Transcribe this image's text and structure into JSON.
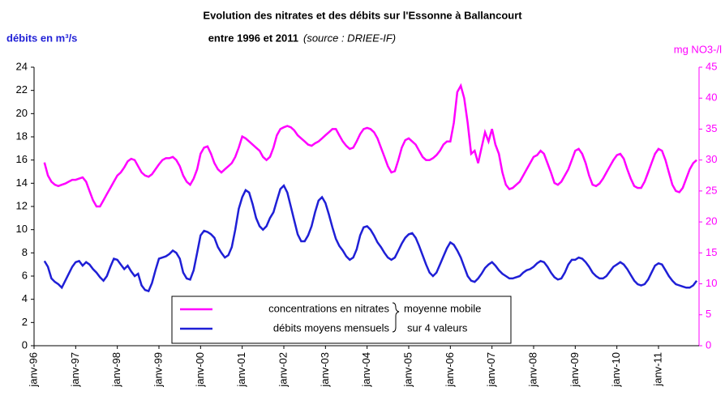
{
  "chart_data": {
    "type": "line",
    "title": "Evolution des nitrates et des débits sur l'Essonne à Ballancourt",
    "subtitle": "entre 1996 et 2011",
    "source": "(source : DRIEE-IF)",
    "y_label": "débits en m³/s",
    "y2_label": "mg NO3-/l",
    "legend_note": [
      "moyenne mobile",
      "sur 4 valeurs"
    ],
    "categories": [
      "janv-96",
      null,
      null,
      null,
      null,
      null,
      null,
      null,
      null,
      null,
      null,
      null,
      "janv-97",
      null,
      null,
      null,
      null,
      null,
      null,
      null,
      null,
      null,
      null,
      null,
      "janv-98",
      null,
      null,
      null,
      null,
      null,
      null,
      null,
      null,
      null,
      null,
      null,
      "janv-99",
      null,
      null,
      null,
      null,
      null,
      null,
      null,
      null,
      null,
      null,
      null,
      "janv-00",
      null,
      null,
      null,
      null,
      null,
      null,
      null,
      null,
      null,
      null,
      null,
      "janv-01",
      null,
      null,
      null,
      null,
      null,
      null,
      null,
      null,
      null,
      null,
      null,
      "janv-02",
      null,
      null,
      null,
      null,
      null,
      null,
      null,
      null,
      null,
      null,
      null,
      "janv-03",
      null,
      null,
      null,
      null,
      null,
      null,
      null,
      null,
      null,
      null,
      null,
      "janv-04",
      null,
      null,
      null,
      null,
      null,
      null,
      null,
      null,
      null,
      null,
      null,
      "janv-05",
      null,
      null,
      null,
      null,
      null,
      null,
      null,
      null,
      null,
      null,
      null,
      "janv-06",
      null,
      null,
      null,
      null,
      null,
      null,
      null,
      null,
      null,
      null,
      null,
      "janv-07",
      null,
      null,
      null,
      null,
      null,
      null,
      null,
      null,
      null,
      null,
      null,
      "janv-08",
      null,
      null,
      null,
      null,
      null,
      null,
      null,
      null,
      null,
      null,
      null,
      "janv-09",
      null,
      null,
      null,
      null,
      null,
      null,
      null,
      null,
      null,
      null,
      null,
      "janv-10",
      null,
      null,
      null,
      null,
      null,
      null,
      null,
      null,
      null,
      null,
      null,
      "janv-11",
      null,
      null,
      null,
      null,
      null,
      null,
      null,
      null,
      null,
      null,
      null
    ],
    "series": [
      {
        "name": "concentrations en nitrates",
        "color": "#ff00ff",
        "axis": "y2",
        "values": [
          null,
          null,
          null,
          29.6,
          27.5,
          26.5,
          26,
          25.8,
          26,
          26.2,
          26.5,
          26.8,
          26.8,
          27,
          27.2,
          26.5,
          25,
          23.5,
          22.5,
          22.5,
          23.5,
          24.5,
          25.5,
          26.5,
          27.5,
          28,
          28.8,
          29.8,
          30.2,
          30,
          29,
          28,
          27.5,
          27.3,
          27.7,
          28.5,
          29.3,
          30,
          30.3,
          30.3,
          30.5,
          30,
          29,
          27.5,
          26.5,
          26,
          27,
          28.5,
          31,
          32,
          32.2,
          31,
          29.5,
          28.5,
          28,
          28.5,
          29,
          29.5,
          30.5,
          32,
          33.8,
          33.5,
          33,
          32.5,
          32,
          31.5,
          30.5,
          30,
          30.5,
          32,
          34,
          35,
          35.3,
          35.5,
          35.3,
          34.8,
          34,
          33.5,
          33,
          32.5,
          32.3,
          32.7,
          33,
          33.5,
          34,
          34.5,
          35,
          35,
          34,
          33,
          32.3,
          31.8,
          32,
          33,
          34.2,
          35,
          35.2,
          35,
          34.5,
          33.5,
          32,
          30.5,
          29,
          28,
          28.2,
          30,
          32,
          33.2,
          33.5,
          33,
          32.5,
          31.5,
          30.5,
          30,
          30,
          30.3,
          30.8,
          31.5,
          32.5,
          33,
          33,
          36,
          41,
          42,
          40,
          36,
          31,
          31.5,
          29.5,
          32,
          34.5,
          33,
          35,
          32.5,
          31,
          28,
          26,
          25.3,
          25.5,
          26,
          26.5,
          27.5,
          28.5,
          29.5,
          30.5,
          30.8,
          31.5,
          31,
          29.5,
          28,
          26.3,
          26,
          26.5,
          27.5,
          28.5,
          30,
          31.5,
          31.8,
          31,
          29.5,
          27.5,
          26,
          25.8,
          26.2,
          27,
          28,
          29,
          30,
          30.8,
          31,
          30.2,
          28.5,
          27,
          25.8,
          25.5,
          25.5,
          26.5,
          28,
          29.5,
          31,
          31.8,
          31.5,
          30,
          28,
          26,
          25,
          24.8,
          25.5,
          27,
          28.5,
          29.5,
          30
        ]
      },
      {
        "name": "débits moyens mensuels",
        "color": "#1f1fd6",
        "values": [
          null,
          null,
          null,
          7.3,
          6.8,
          5.8,
          5.5,
          5.3,
          5,
          5.6,
          6.2,
          6.8,
          7.2,
          7.3,
          6.9,
          7.2,
          7,
          6.6,
          6.3,
          5.9,
          5.6,
          6,
          6.8,
          7.5,
          7.4,
          7,
          6.6,
          6.9,
          6.4,
          6,
          6.2,
          5.2,
          4.8,
          4.7,
          5.4,
          6.5,
          7.5,
          7.6,
          7.7,
          7.9,
          8.2,
          8,
          7.5,
          6.3,
          5.8,
          5.7,
          6.5,
          8,
          9.5,
          9.9,
          9.8,
          9.6,
          9.3,
          8.5,
          8,
          7.6,
          7.8,
          8.5,
          10,
          11.8,
          12.8,
          13.4,
          13.2,
          12.2,
          11,
          10.3,
          10,
          10.3,
          11,
          11.5,
          12.5,
          13.5,
          13.8,
          13.2,
          12,
          10.8,
          9.6,
          9,
          9,
          9.5,
          10.3,
          11.5,
          12.5,
          12.8,
          12.3,
          11.3,
          10.2,
          9.2,
          8.6,
          8.2,
          7.7,
          7.4,
          7.6,
          8.3,
          9.5,
          10.2,
          10.3,
          10,
          9.5,
          8.9,
          8.5,
          8,
          7.6,
          7.4,
          7.6,
          8.2,
          8.8,
          9.3,
          9.6,
          9.7,
          9.3,
          8.6,
          7.8,
          7,
          6.3,
          6,
          6.3,
          7,
          7.7,
          8.4,
          8.9,
          8.7,
          8.2,
          7.6,
          6.8,
          6,
          5.6,
          5.5,
          5.8,
          6.2,
          6.7,
          7,
          7.2,
          6.9,
          6.5,
          6.2,
          6,
          5.8,
          5.8,
          5.9,
          6,
          6.3,
          6.5,
          6.6,
          6.8,
          7.1,
          7.3,
          7.2,
          6.8,
          6.3,
          5.9,
          5.7,
          5.8,
          6.3,
          7,
          7.4,
          7.4,
          7.6,
          7.5,
          7.2,
          6.8,
          6.3,
          6,
          5.8,
          5.8,
          6,
          6.4,
          6.8,
          7,
          7.2,
          7,
          6.6,
          6.1,
          5.6,
          5.3,
          5.2,
          5.3,
          5.7,
          6.3,
          6.9,
          7.1,
          7,
          6.5,
          6,
          5.6,
          5.3,
          5.2,
          5.1,
          5,
          5,
          5.2,
          5.6
        ]
      }
    ],
    "ylim": [
      0,
      24
    ],
    "yticks": [
      0,
      2,
      4,
      6,
      8,
      10,
      12,
      14,
      16,
      18,
      20,
      22,
      24
    ],
    "y2lim": [
      0,
      45
    ],
    "y2ticks": [
      0,
      5,
      10,
      15,
      20,
      25,
      30,
      35,
      40,
      45
    ]
  }
}
